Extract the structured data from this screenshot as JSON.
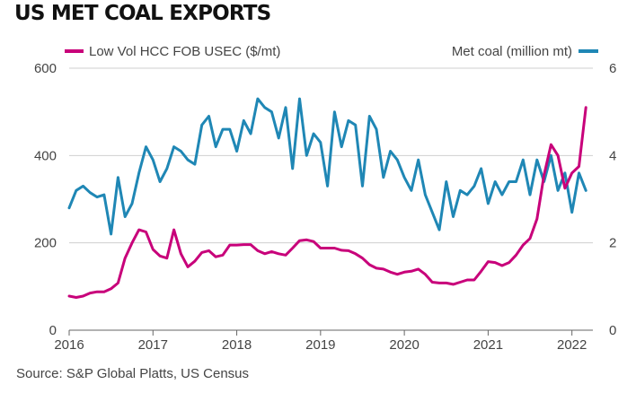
{
  "title": "US MET COAL EXPORTS",
  "source": "Source: S&P Global Platts, US Census",
  "chart_data": {
    "type": "line",
    "x_start": 2016.0,
    "x_step": 0.0833333,
    "xlim": [
      2016,
      2022.25
    ],
    "x_ticks": [
      2016,
      2017,
      2018,
      2019,
      2020,
      2021,
      2022
    ],
    "left_axis": {
      "label": "Low Vol HCC FOB USEC ($/mt)",
      "ylim": [
        0,
        600
      ],
      "ticks": [
        0,
        200,
        400,
        600
      ]
    },
    "right_axis": {
      "label": "Met coal (million mt)",
      "ylim": [
        0,
        6
      ],
      "ticks": [
        0,
        2,
        4,
        6
      ]
    },
    "series": [
      {
        "name": "Low Vol HCC FOB USEC ($/mt)",
        "axis": "left",
        "color": "#c8007a",
        "values": [
          78,
          75,
          78,
          85,
          88,
          88,
          95,
          108,
          165,
          200,
          230,
          225,
          185,
          170,
          165,
          230,
          175,
          145,
          158,
          178,
          182,
          168,
          172,
          195,
          195,
          196,
          196,
          182,
          175,
          180,
          175,
          172,
          188,
          205,
          207,
          203,
          188,
          188,
          188,
          183,
          182,
          175,
          165,
          150,
          142,
          140,
          133,
          128,
          133,
          135,
          140,
          128,
          110,
          108,
          108,
          105,
          110,
          115,
          115,
          135,
          157,
          155,
          148,
          155,
          172,
          195,
          210,
          255,
          355,
          425,
          400,
          325,
          360,
          375,
          510
        ]
      },
      {
        "name": "Met coal (million mt)",
        "axis": "right",
        "color": "#1f87b5",
        "values": [
          2.8,
          3.2,
          3.3,
          3.15,
          3.05,
          3.1,
          2.2,
          3.5,
          2.6,
          2.9,
          3.6,
          4.2,
          3.9,
          3.4,
          3.7,
          4.2,
          4.1,
          3.9,
          3.8,
          4.7,
          4.9,
          4.2,
          4.6,
          4.6,
          4.1,
          4.8,
          4.5,
          5.3,
          5.1,
          5.0,
          4.4,
          5.1,
          3.7,
          5.3,
          4.0,
          4.5,
          4.3,
          3.3,
          5.0,
          4.2,
          4.8,
          4.7,
          3.3,
          4.9,
          4.6,
          3.5,
          4.1,
          3.9,
          3.5,
          3.2,
          3.9,
          3.1,
          2.7,
          2.3,
          3.4,
          2.6,
          3.2,
          3.1,
          3.3,
          3.7,
          2.9,
          3.4,
          3.1,
          3.4,
          3.4,
          3.9,
          3.1,
          3.9,
          3.4,
          4.0,
          3.2,
          3.6,
          2.7,
          3.6,
          3.2
        ]
      }
    ]
  }
}
